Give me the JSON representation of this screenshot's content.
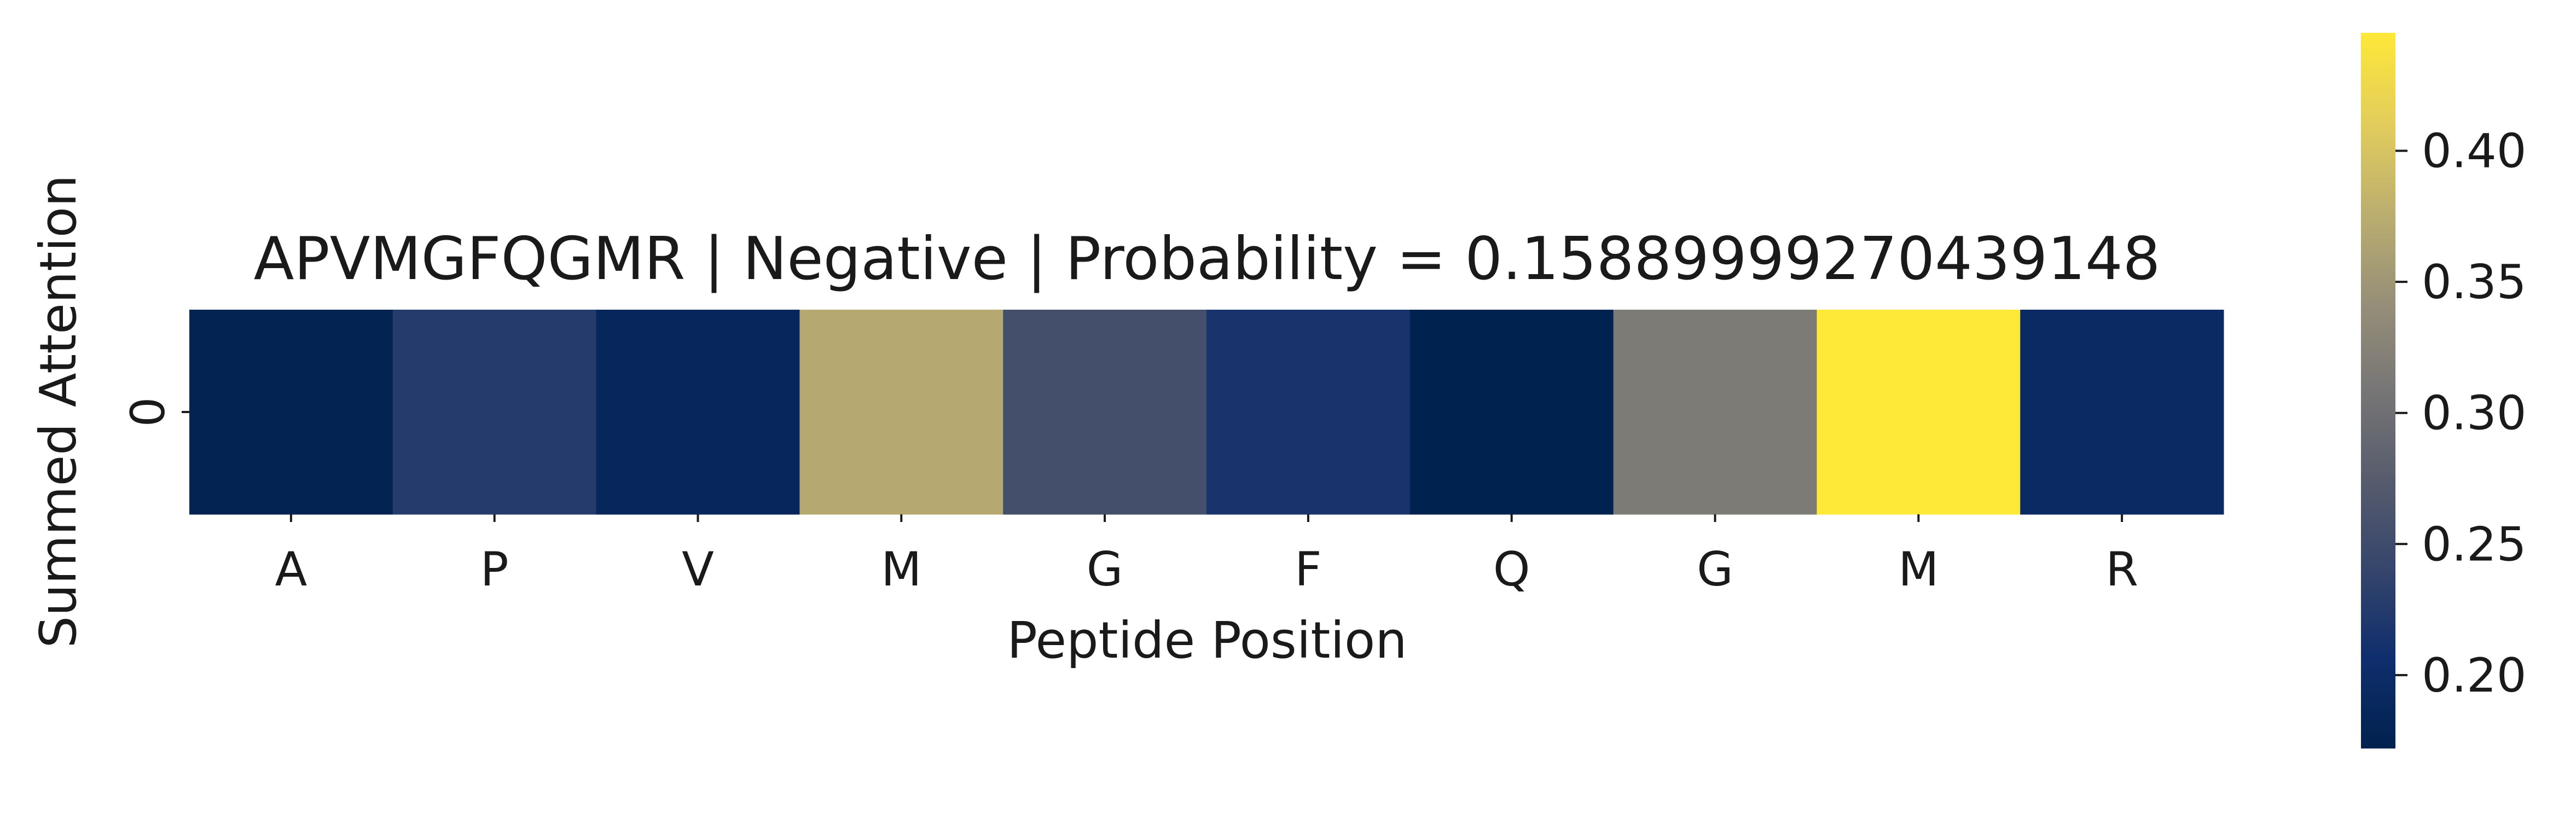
{
  "chart_data": {
    "type": "heatmap",
    "title": "APVMGFQGMR | Negative | Probability = 0.15889999270439148",
    "xlabel": "Peptide Position",
    "ylabel": "Summed Attention",
    "x_categories": [
      "A",
      "P",
      "V",
      "M",
      "G",
      "F",
      "Q",
      "G",
      "M",
      "R"
    ],
    "y_categories": [
      "0"
    ],
    "values": [
      [
        0.178,
        0.225,
        0.187,
        0.37,
        0.255,
        0.215,
        0.172,
        0.315,
        0.445,
        0.196
      ]
    ],
    "colormap": "cividis",
    "colorbar": {
      "vmin": 0.172,
      "vmax": 0.445,
      "ticks": [
        0.2,
        0.25,
        0.3,
        0.35,
        0.4
      ],
      "tick_labels": [
        "0.20",
        "0.25",
        "0.30",
        "0.35",
        "0.40"
      ]
    },
    "grid": false,
    "legend": "colorbar-right"
  }
}
